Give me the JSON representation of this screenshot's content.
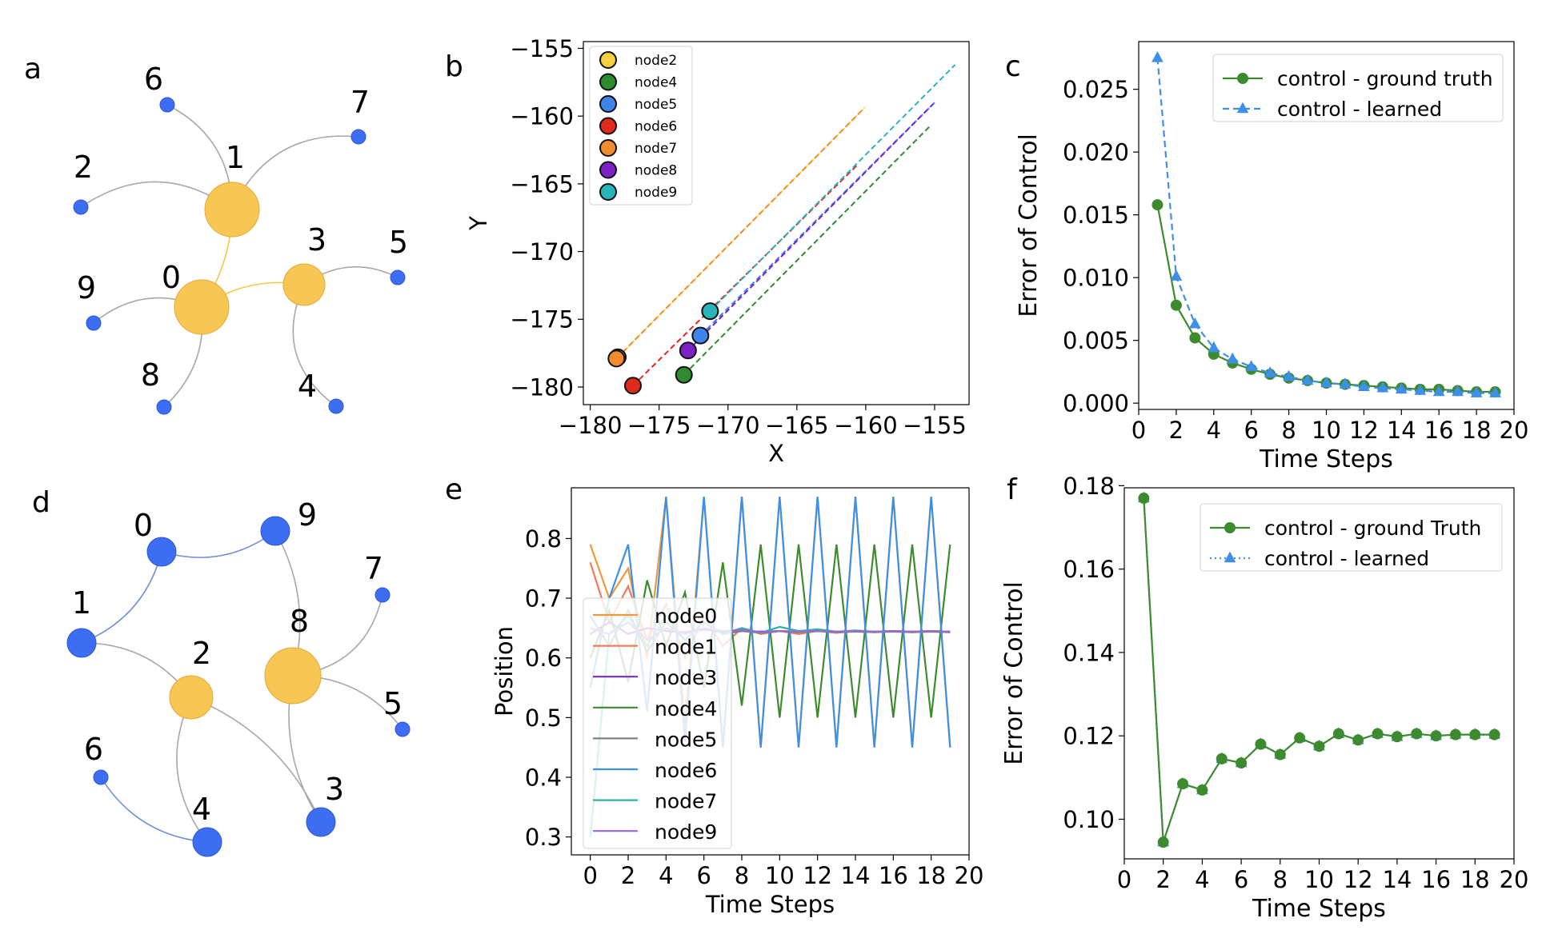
{
  "chart_data": [
    {
      "id": "a",
      "type": "network",
      "panel_label": "a",
      "nodes": [
        {
          "id": "0",
          "role": "driver"
        },
        {
          "id": "1",
          "role": "driver"
        },
        {
          "id": "3",
          "role": "driver"
        },
        {
          "id": "2",
          "role": "driven"
        },
        {
          "id": "4",
          "role": "driven"
        },
        {
          "id": "5",
          "role": "driven"
        },
        {
          "id": "6",
          "role": "driven"
        },
        {
          "id": "7",
          "role": "driven"
        },
        {
          "id": "8",
          "role": "driven"
        },
        {
          "id": "9",
          "role": "driven"
        }
      ],
      "edges": [
        [
          "0",
          "1"
        ],
        [
          "0",
          "3"
        ],
        [
          "1",
          "2"
        ],
        [
          "1",
          "6"
        ],
        [
          "1",
          "7"
        ],
        [
          "0",
          "9"
        ],
        [
          "0",
          "8"
        ],
        [
          "3",
          "5"
        ],
        [
          "3",
          "4"
        ]
      ]
    },
    {
      "id": "b",
      "type": "scatter",
      "panel_label": "b",
      "xlabel": "X",
      "ylabel": "Y",
      "xlim": [
        -180.5,
        -152.5
      ],
      "ylim": [
        -181.3,
        -154.5
      ],
      "xticks": [
        -180,
        -175,
        -170,
        -165,
        -160,
        -155
      ],
      "yticks": [
        -155,
        -160,
        -165,
        -170,
        -175,
        -180
      ],
      "series": [
        {
          "name": "node2",
          "color": "#f5d142",
          "end": [
            -178,
            -177.8
          ],
          "start": [
            -160,
            -159.3
          ]
        },
        {
          "name": "node4",
          "color": "#2e8b2e",
          "end": [
            -173.2,
            -179.1
          ],
          "start": [
            -155.3,
            -160.7
          ]
        },
        {
          "name": "node5",
          "color": "#3d85e8",
          "end": [
            -172,
            -176.2
          ],
          "start": [
            -155,
            -159
          ]
        },
        {
          "name": "node6",
          "color": "#e02a1e",
          "end": [
            -176.9,
            -179.9
          ],
          "start": [
            -160.5,
            -163.5
          ]
        },
        {
          "name": "node7",
          "color": "#f28a2e",
          "end": [
            -178.1,
            -177.9
          ],
          "start": [
            -160.1,
            -159.4
          ]
        },
        {
          "name": "node8",
          "color": "#7e22c7",
          "end": [
            -172.9,
            -177.3
          ],
          "start": [
            -155.1,
            -159.1
          ]
        },
        {
          "name": "node9",
          "color": "#2ab4bc",
          "end": [
            -171.3,
            -174.4
          ],
          "start": [
            -153.5,
            -156.2
          ]
        }
      ]
    },
    {
      "id": "c",
      "type": "line",
      "panel_label": "c",
      "xlabel": "Time Steps",
      "ylabel": "Error of Control",
      "xlim": [
        0,
        20
      ],
      "ylim": [
        -0.0005,
        0.0288
      ],
      "xticks": [
        0,
        2,
        4,
        6,
        8,
        10,
        12,
        14,
        16,
        18,
        20
      ],
      "yticks": [
        "0.000",
        "0.005",
        "0.010",
        "0.015",
        "0.020",
        "0.025"
      ],
      "x": [
        1,
        2,
        3,
        4,
        5,
        6,
        7,
        8,
        9,
        10,
        11,
        12,
        13,
        14,
        15,
        16,
        17,
        18,
        19
      ],
      "series": [
        {
          "name": "control - ground truth",
          "color": "#3d8b2e",
          "marker": "circle",
          "dash": "solid",
          "values": [
            0.0158,
            0.0078,
            0.0052,
            0.0039,
            0.0032,
            0.0027,
            0.0023,
            0.002,
            0.0018,
            0.0016,
            0.0015,
            0.0014,
            0.0013,
            0.0012,
            0.0011,
            0.0011,
            0.001,
            0.0009,
            0.0009
          ]
        },
        {
          "name": "control - learned",
          "color": "#3d8fe8",
          "marker": "triangle",
          "dash": "dashed",
          "values": [
            0.0275,
            0.0101,
            0.0063,
            0.0044,
            0.0035,
            0.0029,
            0.0024,
            0.0021,
            0.0018,
            0.0016,
            0.0015,
            0.0013,
            0.0012,
            0.0011,
            0.001,
            0.0009,
            0.0009,
            0.0008,
            0.0008
          ]
        }
      ]
    },
    {
      "id": "d",
      "type": "network",
      "panel_label": "d",
      "nodes": [
        {
          "id": "2",
          "role": "driver"
        },
        {
          "id": "8",
          "role": "driver"
        },
        {
          "id": "0",
          "role": "driven"
        },
        {
          "id": "1",
          "role": "driven"
        },
        {
          "id": "3",
          "role": "driven"
        },
        {
          "id": "4",
          "role": "driven"
        },
        {
          "id": "5",
          "role": "driven"
        },
        {
          "id": "6",
          "role": "driven"
        },
        {
          "id": "7",
          "role": "driven"
        },
        {
          "id": "9",
          "role": "driven"
        }
      ],
      "edges": [
        [
          "0",
          "9"
        ],
        [
          "0",
          "1"
        ],
        [
          "1",
          "2"
        ],
        [
          "2",
          "3"
        ],
        [
          "2",
          "4"
        ],
        [
          "6",
          "4"
        ],
        [
          "9",
          "8"
        ],
        [
          "8",
          "7"
        ],
        [
          "8",
          "5"
        ],
        [
          "8",
          "3"
        ]
      ]
    },
    {
      "id": "e",
      "type": "line",
      "panel_label": "e",
      "xlabel": "Time Steps",
      "ylabel": "Position",
      "xlim": [
        -1,
        20
      ],
      "ylim": [
        0.27,
        0.885
      ],
      "xticks": [
        0,
        2,
        4,
        6,
        8,
        10,
        12,
        14,
        16,
        18,
        20
      ],
      "yticks": [
        "0.3",
        "0.4",
        "0.5",
        "0.6",
        "0.7",
        "0.8"
      ],
      "x": [
        0,
        1,
        2,
        3,
        4,
        5,
        6,
        7,
        8,
        9,
        10,
        11,
        12,
        13,
        14,
        15,
        16,
        17,
        18,
        19
      ],
      "series": [
        {
          "name": "node0",
          "color": "#f0983a",
          "values": [
            0.79,
            0.7,
            0.75,
            0.6,
            0.87,
            0.49,
            0.87,
            0.45,
            0.87,
            0.45,
            0.87,
            0.45,
            0.87,
            0.45,
            0.87,
            0.45,
            0.87,
            0.45,
            0.87,
            0.45
          ]
        },
        {
          "name": "node1",
          "color": "#f07a5a",
          "values": [
            0.76,
            0.66,
            0.72,
            0.63,
            0.69,
            0.6,
            0.67,
            0.62,
            0.65,
            0.64,
            0.645,
            0.64,
            0.645,
            0.642,
            0.645,
            0.643,
            0.645,
            0.643,
            0.644,
            0.643
          ]
        },
        {
          "name": "node3",
          "color": "#7a2ac7",
          "values": [
            0.64,
            0.66,
            0.64,
            0.65,
            0.645,
            0.643,
            0.648,
            0.643,
            0.645,
            0.644,
            0.645,
            0.644,
            0.645,
            0.644,
            0.645,
            0.644,
            0.645,
            0.644,
            0.645,
            0.644
          ]
        },
        {
          "name": "node4",
          "color": "#3d8b2e",
          "values": [
            0.6,
            0.68,
            0.56,
            0.73,
            0.62,
            0.71,
            0.55,
            0.76,
            0.52,
            0.79,
            0.5,
            0.79,
            0.5,
            0.79,
            0.5,
            0.79,
            0.5,
            0.79,
            0.5,
            0.79
          ]
        },
        {
          "name": "node5",
          "color": "#808080",
          "values": [
            0.67,
            0.62,
            0.68,
            0.61,
            0.66,
            0.63,
            0.66,
            0.64,
            0.645,
            0.642,
            0.645,
            0.643,
            0.645,
            0.643,
            0.644,
            0.643,
            0.644,
            0.643,
            0.644,
            0.643
          ]
        },
        {
          "name": "node6",
          "color": "#3d8fe8",
          "values": [
            0.55,
            0.7,
            0.79,
            0.51,
            0.87,
            0.46,
            0.87,
            0.45,
            0.87,
            0.45,
            0.87,
            0.45,
            0.87,
            0.45,
            0.87,
            0.45,
            0.87,
            0.45,
            0.87,
            0.45
          ]
        },
        {
          "name": "node7",
          "color": "#2ab4a6",
          "values": [
            0.3,
            0.64,
            0.67,
            0.62,
            0.67,
            0.63,
            0.66,
            0.64,
            0.65,
            0.642,
            0.652,
            0.645,
            0.648,
            0.644,
            0.646,
            0.644,
            0.645,
            0.644,
            0.645,
            0.644
          ]
        },
        {
          "name": "node9",
          "color": "#9a6ad0",
          "values": [
            0.65,
            0.64,
            0.66,
            0.63,
            0.65,
            0.64,
            0.65,
            0.645,
            0.647,
            0.643,
            0.645,
            0.644,
            0.645,
            0.644,
            0.645,
            0.644,
            0.645,
            0.644,
            0.645,
            0.644
          ]
        }
      ]
    },
    {
      "id": "f",
      "type": "line",
      "panel_label": "f",
      "xlabel": "Time Steps",
      "ylabel": "Error of Control",
      "xlim": [
        0,
        20
      ],
      "ylim": [
        0.0905,
        0.1795
      ],
      "xticks": [
        0,
        2,
        4,
        6,
        8,
        10,
        12,
        14,
        16,
        18,
        20
      ],
      "yticks": [
        "0.10",
        "0.12",
        "0.14",
        "0.16",
        "0.18"
      ],
      "x": [
        1,
        2,
        3,
        4,
        5,
        6,
        7,
        8,
        9,
        10,
        11,
        12,
        13,
        14,
        15,
        16,
        17,
        18,
        19
      ],
      "series": [
        {
          "name": "control - ground Truth",
          "color": "#3d8b2e",
          "marker": "circle",
          "dash": "solid",
          "values": [
            0.177,
            0.0945,
            0.1085,
            0.107,
            0.1145,
            0.1135,
            0.118,
            0.1155,
            0.1195,
            0.1175,
            0.1205,
            0.119,
            0.1205,
            0.1198,
            0.1205,
            0.12,
            0.1203,
            0.1203,
            0.1203
          ]
        },
        {
          "name": "control - learned",
          "color": "#3d8fe8",
          "marker": "triangle",
          "dash": "dotted",
          "values": [
            0.177,
            0.0945,
            0.1085,
            0.107,
            0.1145,
            0.1135,
            0.118,
            0.1155,
            0.1195,
            0.1175,
            0.1205,
            0.119,
            0.1205,
            0.1198,
            0.1205,
            0.12,
            0.1203,
            0.1203,
            0.1203
          ]
        }
      ]
    }
  ]
}
